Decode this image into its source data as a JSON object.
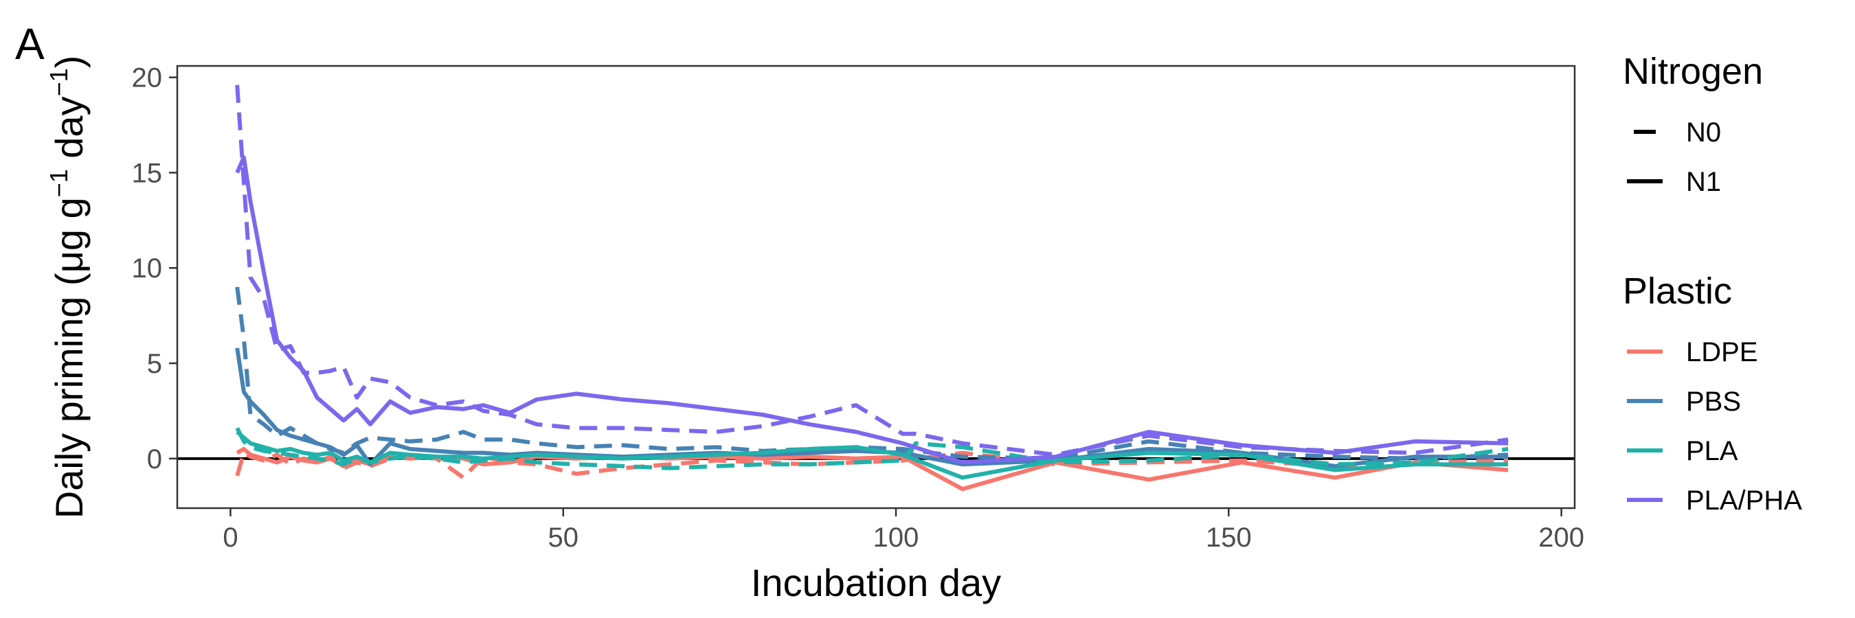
{
  "panel_label": "A",
  "chart_data": {
    "type": "line",
    "title": "",
    "xlabel": "Incubation day",
    "ylabel_parts": [
      "Daily priming (μg g",
      "−1",
      " day",
      "−1",
      ")"
    ],
    "xlim": [
      -8,
      202
    ],
    "ylim": [
      -2.6,
      20.6
    ],
    "xticks": [
      0,
      50,
      100,
      150,
      200
    ],
    "yticks": [
      0,
      5,
      10,
      15,
      20
    ],
    "hline": 0,
    "legend_position": "right",
    "legends": {
      "nitrogen": {
        "title": "Nitrogen",
        "items": [
          {
            "label": "N0",
            "linetype": "dashed"
          },
          {
            "label": "N1",
            "linetype": "solid"
          }
        ]
      },
      "plastic": {
        "title": "Plastic",
        "items": [
          {
            "label": "LDPE",
            "color": "#F8766D"
          },
          {
            "label": "PBS",
            "color": "#4682B4"
          },
          {
            "label": "PLA",
            "color": "#20B2AA"
          },
          {
            "label": "PLA/PHA",
            "color": "#7B68EE"
          }
        ]
      }
    },
    "series": [
      {
        "plastic": "LDPE",
        "nitrogen": "N0",
        "color": "#F8766D",
        "linetype": "dashed",
        "x": [
          1,
          2,
          3,
          5,
          7,
          9,
          11,
          13,
          15,
          17,
          19,
          21,
          24,
          27,
          31,
          35,
          38,
          42,
          46,
          52,
          59,
          66,
          73,
          80,
          87,
          94,
          101,
          110,
          124,
          138,
          152,
          166,
          178,
          192
        ],
        "y": [
          -0.9,
          0.3,
          0.1,
          -0.1,
          0.2,
          -0.3,
          0.0,
          -0.2,
          0.1,
          -0.5,
          -0.2,
          -0.4,
          0.0,
          0.1,
          0.0,
          -1.0,
          0.1,
          -0.2,
          -0.3,
          -0.8,
          -0.5,
          -0.3,
          -0.1,
          -0.2,
          -0.3,
          -0.2,
          -0.1,
          0.3,
          -0.3,
          -0.2,
          -0.1,
          -0.4,
          -0.2,
          -0.1
        ]
      },
      {
        "plastic": "LDPE",
        "nitrogen": "N1",
        "color": "#F8766D",
        "linetype": "solid",
        "x": [
          1,
          2,
          3,
          5,
          7,
          9,
          11,
          13,
          15,
          17,
          19,
          21,
          24,
          27,
          31,
          35,
          38,
          42,
          46,
          52,
          59,
          66,
          73,
          80,
          87,
          94,
          101,
          110,
          124,
          138,
          152,
          166,
          178,
          192
        ],
        "y": [
          0.3,
          0.5,
          0.2,
          0.0,
          -0.2,
          0.1,
          -0.1,
          -0.2,
          0.0,
          -0.4,
          -0.1,
          -0.3,
          0.1,
          0.0,
          0.1,
          0.0,
          -0.3,
          -0.2,
          0.1,
          0.0,
          0.1,
          0.0,
          0.1,
          0.0,
          0.1,
          0.0,
          0.1,
          -1.6,
          -0.2,
          -1.1,
          -0.2,
          -1.0,
          -0.2,
          -0.6
        ]
      },
      {
        "plastic": "PBS",
        "nitrogen": "N0",
        "color": "#4682B4",
        "linetype": "dashed",
        "x": [
          1,
          2,
          3,
          5,
          7,
          9,
          11,
          13,
          15,
          17,
          19,
          21,
          24,
          27,
          31,
          35,
          38,
          42,
          46,
          52,
          59,
          66,
          73,
          80,
          87,
          94,
          101,
          110,
          124,
          138,
          152,
          166,
          178,
          192
        ],
        "y": [
          9.0,
          6.3,
          2.3,
          1.8,
          1.2,
          1.6,
          1.2,
          0.8,
          0.5,
          0.3,
          0.8,
          1.1,
          1.0,
          0.9,
          1.0,
          1.4,
          1.0,
          1.0,
          0.8,
          0.6,
          0.7,
          0.5,
          0.6,
          0.4,
          0.5,
          0.6,
          0.5,
          0.1,
          0.0,
          0.9,
          0.3,
          0.1,
          0.0,
          0.2
        ]
      },
      {
        "plastic": "PBS",
        "nitrogen": "N1",
        "color": "#4682B4",
        "linetype": "solid",
        "x": [
          1,
          2,
          3,
          5,
          7,
          9,
          11,
          13,
          15,
          17,
          19,
          21,
          24,
          27,
          31,
          35,
          38,
          42,
          46,
          52,
          59,
          66,
          73,
          80,
          87,
          94,
          101,
          110,
          124,
          138,
          152,
          166,
          178,
          192
        ],
        "y": [
          5.8,
          3.5,
          3.0,
          2.3,
          1.5,
          1.2,
          1.0,
          0.8,
          0.6,
          0.2,
          0.7,
          -0.3,
          0.8,
          0.5,
          0.4,
          0.3,
          0.3,
          0.2,
          0.3,
          0.2,
          0.1,
          0.2,
          0.3,
          0.2,
          0.3,
          0.4,
          0.3,
          -0.3,
          -0.1,
          0.5,
          0.3,
          -0.4,
          0.1,
          0.1
        ]
      },
      {
        "plastic": "PLA",
        "nitrogen": "N0",
        "color": "#20B2AA",
        "linetype": "dashed",
        "x": [
          1,
          2,
          3,
          5,
          7,
          9,
          11,
          13,
          15,
          17,
          19,
          21,
          24,
          27,
          31,
          35,
          38,
          42,
          46,
          52,
          59,
          66,
          73,
          80,
          87,
          94,
          101,
          103,
          110,
          124,
          138,
          152,
          166,
          178,
          192
        ],
        "y": [
          1.6,
          0.9,
          0.6,
          0.4,
          0.3,
          0.2,
          0.1,
          0.0,
          -0.1,
          -0.3,
          0.0,
          -0.2,
          0.0,
          0.1,
          0.0,
          -0.2,
          -0.1,
          0.0,
          -0.2,
          -0.3,
          -0.4,
          -0.5,
          -0.4,
          -0.3,
          -0.3,
          -0.2,
          -0.1,
          0.8,
          0.6,
          -0.2,
          -0.1,
          0.2,
          -0.3,
          -0.2,
          0.5
        ]
      },
      {
        "plastic": "PLA",
        "nitrogen": "N1",
        "color": "#20B2AA",
        "linetype": "solid",
        "x": [
          1,
          2,
          3,
          5,
          7,
          9,
          11,
          13,
          15,
          17,
          19,
          21,
          24,
          27,
          31,
          35,
          38,
          42,
          46,
          52,
          59,
          66,
          73,
          80,
          87,
          94,
          101,
          110,
          124,
          138,
          152,
          166,
          178,
          192
        ],
        "y": [
          1.4,
          1.1,
          0.8,
          0.6,
          0.4,
          0.5,
          0.3,
          0.2,
          0.3,
          -0.1,
          0.1,
          -0.2,
          0.3,
          0.2,
          0.1,
          0.1,
          0.0,
          0.1,
          0.2,
          0.1,
          0.0,
          0.1,
          0.2,
          0.3,
          0.5,
          0.6,
          0.2,
          -1.0,
          -0.1,
          0.3,
          0.2,
          -0.6,
          -0.3,
          -0.3
        ]
      },
      {
        "plastic": "PLA/PHA",
        "nitrogen": "N0",
        "color": "#7B68EE",
        "linetype": "dashed",
        "x": [
          1,
          2,
          3,
          5,
          7,
          9,
          11,
          13,
          15,
          17,
          19,
          21,
          24,
          27,
          31,
          35,
          38,
          42,
          46,
          52,
          59,
          66,
          73,
          80,
          87,
          94,
          101,
          103,
          110,
          124,
          138,
          152,
          166,
          178,
          192
        ],
        "y": [
          19.6,
          14.5,
          9.5,
          8.4,
          5.7,
          5.9,
          4.5,
          4.5,
          4.6,
          4.8,
          3.2,
          4.2,
          4.0,
          3.2,
          2.8,
          3.0,
          2.5,
          2.3,
          1.8,
          1.6,
          1.6,
          1.5,
          1.4,
          1.7,
          2.2,
          2.8,
          1.3,
          1.3,
          0.8,
          0.2,
          1.2,
          0.6,
          0.4,
          0.3,
          1.0
        ]
      },
      {
        "plastic": "PLA/PHA",
        "nitrogen": "N1",
        "color": "#7B68EE",
        "linetype": "solid",
        "x": [
          1,
          2,
          3,
          5,
          7,
          9,
          11,
          13,
          15,
          17,
          19,
          21,
          24,
          27,
          31,
          35,
          38,
          42,
          46,
          52,
          59,
          66,
          73,
          80,
          87,
          94,
          101,
          110,
          124,
          138,
          152,
          166,
          178,
          192
        ],
        "y": [
          15.0,
          15.8,
          13.5,
          9.8,
          6.2,
          5.3,
          4.6,
          3.2,
          2.6,
          2.0,
          2.6,
          1.8,
          3.0,
          2.4,
          2.7,
          2.6,
          2.8,
          2.4,
          3.1,
          3.4,
          3.1,
          2.9,
          2.6,
          2.3,
          1.8,
          1.4,
          0.8,
          -0.2,
          0.1,
          1.4,
          0.7,
          0.3,
          0.9,
          0.8
        ]
      }
    ]
  }
}
